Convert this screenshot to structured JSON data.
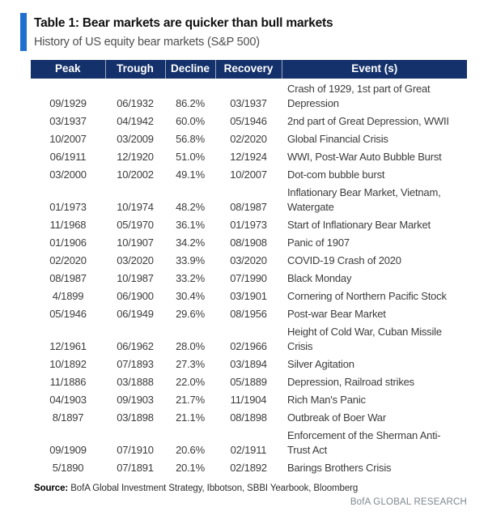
{
  "title": "Table 1: Bear markets are quicker than bull markets",
  "subtitle": "History of US equity bear markets (S&P 500)",
  "table": {
    "columns": [
      {
        "key": "peak",
        "label": "Peak"
      },
      {
        "key": "trough",
        "label": "Trough"
      },
      {
        "key": "decline",
        "label": "Decline"
      },
      {
        "key": "recovery",
        "label": "Recovery"
      },
      {
        "key": "event",
        "label": "Event (s)"
      }
    ],
    "rows": [
      {
        "peak": "09/1929",
        "trough": "06/1932",
        "decline": "86.2%",
        "recovery": "03/1937",
        "event": "Crash of 1929, 1st part of Great\nDepression"
      },
      {
        "peak": "03/1937",
        "trough": "04/1942",
        "decline": "60.0%",
        "recovery": "05/1946",
        "event": "2nd part of Great Depression, WWII"
      },
      {
        "peak": "10/2007",
        "trough": "03/2009",
        "decline": "56.8%",
        "recovery": "02/2020",
        "event": "Global Financial Crisis"
      },
      {
        "peak": "06/1911",
        "trough": "12/1920",
        "decline": "51.0%",
        "recovery": "12/1924",
        "event": "WWI, Post-War Auto Bubble Burst"
      },
      {
        "peak": "03/2000",
        "trough": "10/2002",
        "decline": "49.1%",
        "recovery": "10/2007",
        "event": "Dot-com bubble burst"
      },
      {
        "peak": "01/1973",
        "trough": "10/1974",
        "decline": "48.2%",
        "recovery": "08/1987",
        "event": "Inflationary Bear Market, Vietnam,\nWatergate"
      },
      {
        "peak": "11/1968",
        "trough": "05/1970",
        "decline": "36.1%",
        "recovery": "01/1973",
        "event": "Start of Inflationary Bear Market"
      },
      {
        "peak": "01/1906",
        "trough": "10/1907",
        "decline": "34.2%",
        "recovery": "08/1908",
        "event": "Panic of 1907"
      },
      {
        "peak": "02/2020",
        "trough": "03/2020",
        "decline": "33.9%",
        "recovery": "03/2020",
        "event": "COVID-19 Crash of 2020"
      },
      {
        "peak": "08/1987",
        "trough": "10/1987",
        "decline": "33.2%",
        "recovery": "07/1990",
        "event": "Black Monday"
      },
      {
        "peak": "4/1899",
        "trough": "06/1900",
        "decline": "30.4%",
        "recovery": "03/1901",
        "event": "Cornering of Northern Pacific Stock"
      },
      {
        "peak": "05/1946",
        "trough": "06/1949",
        "decline": "29.6%",
        "recovery": "08/1956",
        "event": "Post-war Bear Market"
      },
      {
        "peak": "12/1961",
        "trough": "06/1962",
        "decline": "28.0%",
        "recovery": "02/1966",
        "event": "Height of Cold War, Cuban Missile\nCrisis"
      },
      {
        "peak": "10/1892",
        "trough": "07/1893",
        "decline": "27.3%",
        "recovery": "03/1894",
        "event": "Silver Agitation"
      },
      {
        "peak": "11/1886",
        "trough": "03/1888",
        "decline": "22.0%",
        "recovery": "05/1889",
        "event": "Depression, Railroad strikes"
      },
      {
        "peak": "04/1903",
        "trough": "09/1903",
        "decline": "21.7%",
        "recovery": "11/1904",
        "event": "Rich Man's Panic"
      },
      {
        "peak": "8/1897",
        "trough": "03/1898",
        "decline": "21.1%",
        "recovery": "08/1898",
        "event": "Outbreak of Boer War"
      },
      {
        "peak": "09/1909",
        "trough": "07/1910",
        "decline": "20.6%",
        "recovery": "02/1911",
        "event": "Enforcement of the Sherman Anti-\nTrust Act"
      },
      {
        "peak": "5/1890",
        "trough": "07/1891",
        "decline": "20.1%",
        "recovery": "02/1892",
        "event": "Barings Brothers Crisis"
      }
    ]
  },
  "footer": {
    "source_label": "Source:",
    "source_text": "BofA Global Investment Strategy, Ibbotson, SBBI Yearbook, Bloomberg",
    "branding": "BofA GLOBAL RESEARCH"
  },
  "colors": {
    "header_navy": "#14316B",
    "accent_blue": "#1F6FCE",
    "body_text": "#3C3C3C",
    "branding_text": "#7D8790"
  }
}
